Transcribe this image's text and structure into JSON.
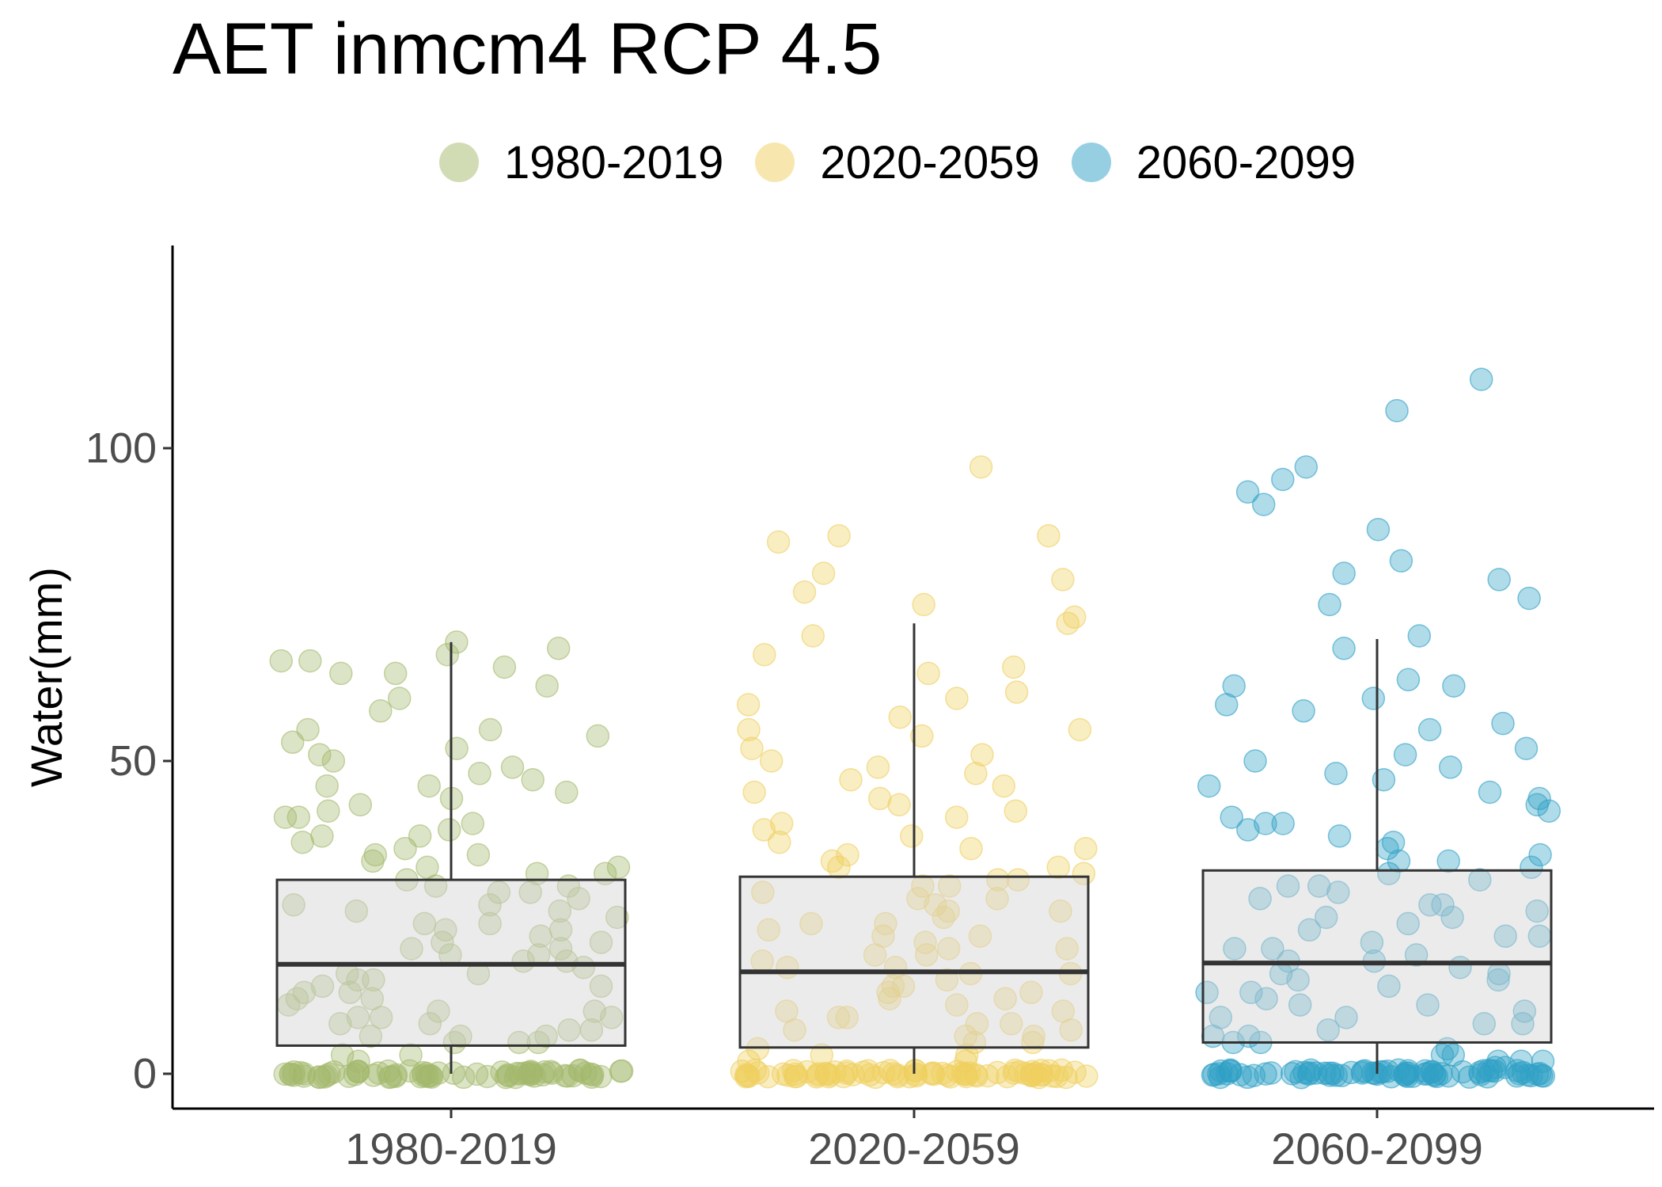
{
  "chart_data": {
    "type": "box",
    "title": "AET inmcm4 RCP 4.5",
    "xlabel": "",
    "ylabel": "Water(mm)",
    "ylim": [
      -6,
      132
    ],
    "y_ticks": [
      0,
      50,
      100
    ],
    "grid": false,
    "legend_position": "top",
    "categories": [
      "1980-2019",
      "2020-2059",
      "2060-2099"
    ],
    "series": [
      {
        "name": "1980-2019",
        "color": "#A4B96C",
        "box": {
          "q1": 4.5,
          "median": 17.5,
          "q3": 31,
          "whisker_low": 0,
          "whisker_high": 69
        },
        "points": [
          0,
          0,
          0,
          0,
          0,
          0,
          0,
          0,
          0,
          0,
          0,
          0,
          0,
          0,
          0,
          0,
          0,
          0,
          0,
          0,
          0,
          0,
          0,
          0,
          0,
          0,
          0,
          0,
          0,
          0,
          0,
          0,
          0,
          0,
          0,
          0,
          0,
          0,
          0,
          0,
          0,
          0,
          0,
          0,
          0,
          0,
          0,
          0,
          0,
          0,
          0,
          0,
          0,
          0,
          0,
          0,
          0,
          0,
          0,
          0,
          0,
          0,
          0,
          0,
          0,
          0,
          0,
          0,
          0,
          0,
          2,
          3,
          3,
          5,
          5,
          5,
          6,
          6,
          6,
          7,
          7,
          8,
          8,
          9,
          9,
          9,
          10,
          10,
          11,
          12,
          12,
          13,
          13,
          14,
          14,
          15,
          15,
          16,
          16,
          17,
          18,
          18,
          19,
          19,
          20,
          20,
          21,
          21,
          22,
          23,
          23,
          24,
          24,
          25,
          26,
          26,
          27,
          27,
          28,
          29,
          29,
          30,
          30,
          31,
          32,
          32,
          33,
          33,
          34,
          35,
          35,
          36,
          37,
          38,
          38,
          39,
          40,
          41,
          41,
          42,
          43,
          44,
          45,
          46,
          46,
          47,
          48,
          49,
          50,
          51,
          52,
          53,
          54,
          55,
          55,
          58,
          60,
          62,
          64,
          64,
          65,
          66,
          66,
          67,
          68,
          69
        ]
      },
      {
        "name": "2020-2059",
        "color": "#EFCF5F",
        "box": {
          "q1": 4.2,
          "median": 16.3,
          "q3": 31.5,
          "whisker_low": 0,
          "whisker_high": 72
        },
        "points": [
          0,
          0,
          0,
          0,
          0,
          0,
          0,
          0,
          0,
          0,
          0,
          0,
          0,
          0,
          0,
          0,
          0,
          0,
          0,
          0,
          0,
          0,
          0,
          0,
          0,
          0,
          0,
          0,
          0,
          0,
          0,
          0,
          0,
          0,
          0,
          0,
          0,
          0,
          0,
          0,
          0,
          0,
          0,
          0,
          0,
          0,
          0,
          0,
          0,
          0,
          0,
          0,
          0,
          0,
          0,
          0,
          0,
          0,
          0,
          0,
          0,
          0,
          0,
          0,
          0,
          0,
          0,
          0,
          0,
          0,
          0,
          0,
          0,
          0,
          0,
          0,
          0,
          0,
          2,
          2,
          3,
          3,
          4,
          5,
          5,
          6,
          6,
          7,
          7,
          8,
          8,
          9,
          9,
          10,
          10,
          11,
          12,
          12,
          13,
          13,
          14,
          14,
          15,
          16,
          16,
          17,
          17,
          18,
          19,
          19,
          20,
          20,
          21,
          22,
          22,
          23,
          24,
          24,
          25,
          26,
          26,
          27,
          28,
          28,
          29,
          30,
          30,
          31,
          31,
          32,
          33,
          33,
          34,
          35,
          36,
          36,
          37,
          38,
          39,
          40,
          41,
          42,
          43,
          44,
          45,
          46,
          47,
          48,
          49,
          50,
          51,
          52,
          54,
          55,
          55,
          57,
          59,
          60,
          61,
          64,
          65,
          67,
          70,
          72,
          73,
          75,
          77,
          79,
          80,
          85,
          86,
          86,
          97
        ]
      },
      {
        "name": "2060-2099",
        "color": "#2FA0C6",
        "box": {
          "q1": 5,
          "median": 17.7,
          "q3": 32.5,
          "whisker_low": 0,
          "whisker_high": 69.5
        },
        "points": [
          0,
          0,
          0,
          0,
          0,
          0,
          0,
          0,
          0,
          0,
          0,
          0,
          0,
          0,
          0,
          0,
          0,
          0,
          0,
          0,
          0,
          0,
          0,
          0,
          0,
          0,
          0,
          0,
          0,
          0,
          0,
          0,
          0,
          0,
          0,
          0,
          0,
          0,
          0,
          0,
          0,
          0,
          0,
          0,
          0,
          0,
          0,
          0,
          0,
          0,
          0,
          0,
          0,
          0,
          0,
          0,
          0,
          0,
          0,
          0,
          0,
          0,
          0,
          0,
          0,
          0,
          0,
          0,
          0,
          0,
          0,
          0,
          0,
          0,
          0,
          0,
          1,
          1,
          2,
          2,
          2,
          3,
          3,
          4,
          5,
          5,
          6,
          6,
          7,
          8,
          8,
          9,
          9,
          10,
          11,
          11,
          12,
          13,
          13,
          14,
          15,
          15,
          16,
          16,
          17,
          18,
          18,
          19,
          20,
          20,
          21,
          22,
          22,
          23,
          24,
          25,
          25,
          26,
          27,
          27,
          28,
          29,
          30,
          30,
          31,
          32,
          33,
          34,
          34,
          35,
          36,
          37,
          38,
          39,
          40,
          40,
          41,
          42,
          43,
          44,
          45,
          46,
          47,
          48,
          49,
          50,
          51,
          52,
          55,
          56,
          58,
          59,
          60,
          62,
          62,
          63,
          68,
          70,
          75,
          76,
          79,
          80,
          82,
          87,
          91,
          93,
          95,
          97,
          106,
          111
        ]
      }
    ]
  }
}
